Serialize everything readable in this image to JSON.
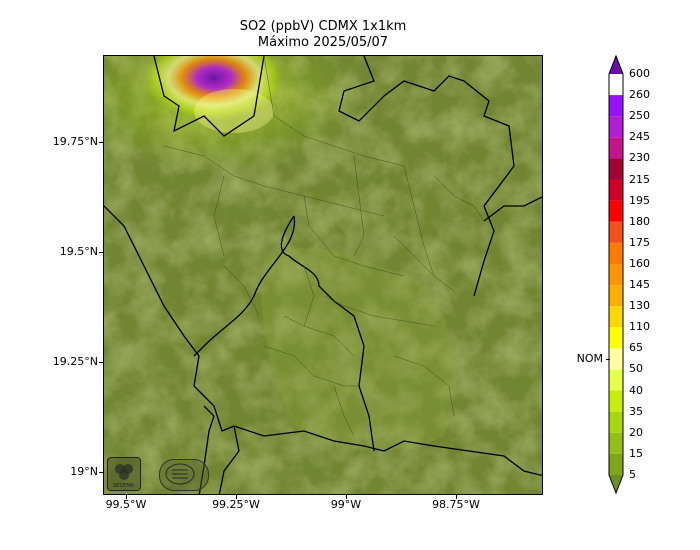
{
  "title": {
    "line1": "SO2 (ppbV) CDMX 1x1km",
    "line2": "Máximo 2025/05/07"
  },
  "map": {
    "y_ticks": [
      {
        "label": "19.75°N",
        "lat": 19.75
      },
      {
        "label": "19.5°N",
        "lat": 19.5
      },
      {
        "label": "19.25°N",
        "lat": 19.25
      },
      {
        "label": "19°N",
        "lat": 19.0
      }
    ],
    "x_ticks": [
      {
        "label": "99.5°W",
        "lon": -99.5
      },
      {
        "label": "99.25°W",
        "lon": -99.25
      },
      {
        "label": "99°W",
        "lon": -99.0
      },
      {
        "label": "98.75°W",
        "lon": -98.75
      }
    ],
    "extent": {
      "lon_min": -99.54,
      "lon_max": -98.54,
      "lat_min": 18.95,
      "lat_max": 19.95
    },
    "logos": [
      {
        "name": "sedema-logo",
        "text": "SEDEMA"
      },
      {
        "name": "gobierno-logo",
        "text": ""
      }
    ]
  },
  "colorbar": {
    "levels": [
      {
        "label": "5",
        "color": "#6b8e23"
      },
      {
        "label": "15",
        "color": "#7fa61a"
      },
      {
        "label": "20",
        "color": "#95bf14"
      },
      {
        "label": "35",
        "color": "#aad60e"
      },
      {
        "label": "40",
        "color": "#c6ee0a"
      },
      {
        "label": "50",
        "color": "#e6ff4a"
      },
      {
        "label": "65",
        "color": "#ffff9f"
      },
      {
        "label": "110",
        "color": "#ffff00"
      },
      {
        "label": "130",
        "color": "#ffd700"
      },
      {
        "label": "145",
        "color": "#ffb000"
      },
      {
        "label": "160",
        "color": "#ff9500"
      },
      {
        "label": "175",
        "color": "#ff7b00"
      },
      {
        "label": "180",
        "color": "#f5501e"
      },
      {
        "label": "195",
        "color": "#ff0000"
      },
      {
        "label": "215",
        "color": "#d10024"
      },
      {
        "label": "230",
        "color": "#a4003a"
      },
      {
        "label": "245",
        "color": "#c8148c"
      },
      {
        "label": "250",
        "color": "#b31cd6"
      },
      {
        "label": "260",
        "color": "#9a10ff"
      },
      {
        "label": "600",
        "color": "#6a0dad"
      }
    ],
    "nom_label": "NOM",
    "nom_between": [
      "50",
      "65"
    ]
  }
}
